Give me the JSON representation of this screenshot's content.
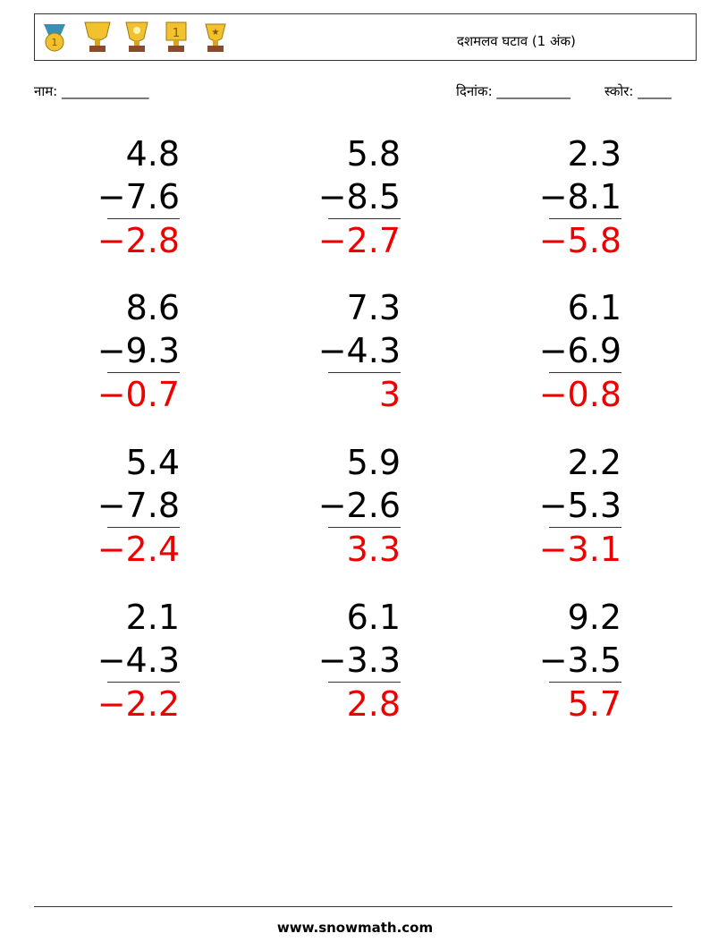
{
  "header": {
    "title": "दशमलव घटाव (1 अंक)",
    "name_label": "नाम: _____________",
    "date_label": "दिनांक: ___________",
    "score_label": "स्कोर: _____"
  },
  "problems": [
    [
      {
        "top": "4.8",
        "bottom": "−7.6",
        "answer": "−2.8"
      },
      {
        "top": "5.8",
        "bottom": "−8.5",
        "answer": "−2.7"
      },
      {
        "top": "2.3",
        "bottom": "−8.1",
        "answer": "−5.8"
      }
    ],
    [
      {
        "top": "8.6",
        "bottom": "−9.3",
        "answer": "−0.7"
      },
      {
        "top": "7.3",
        "bottom": "−4.3",
        "answer": "3"
      },
      {
        "top": "6.1",
        "bottom": "−6.9",
        "answer": "−0.8"
      }
    ],
    [
      {
        "top": "5.4",
        "bottom": "−7.8",
        "answer": "−2.4"
      },
      {
        "top": "5.9",
        "bottom": "−2.6",
        "answer": "3.3"
      },
      {
        "top": "2.2",
        "bottom": "−5.3",
        "answer": "−3.1"
      }
    ],
    [
      {
        "top": "2.1",
        "bottom": "−4.3",
        "answer": "−2.2"
      },
      {
        "top": "6.1",
        "bottom": "−3.3",
        "answer": "2.8"
      },
      {
        "top": "9.2",
        "bottom": "−3.5",
        "answer": "5.7"
      }
    ]
  ],
  "footer": {
    "url": "www.snowmath.com"
  }
}
